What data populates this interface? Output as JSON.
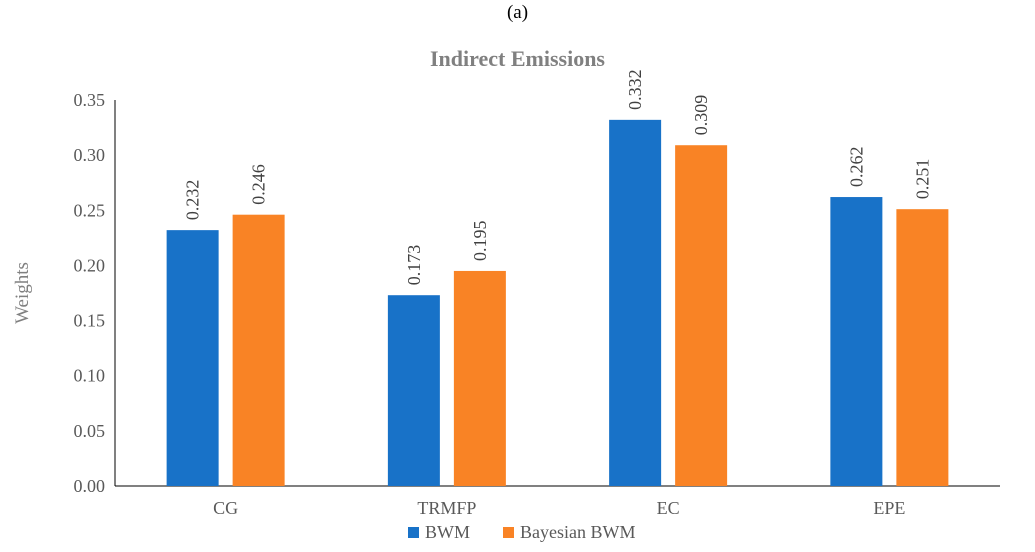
{
  "panel_label": "(a)",
  "chart_data": {
    "type": "bar",
    "title": "Indirect Emissions",
    "xlabel": "",
    "ylabel": "Weights",
    "categories": [
      "CG",
      "TRMFP",
      "EC",
      "EPE"
    ],
    "series": [
      {
        "name": "BWM",
        "values": [
          0.232,
          0.173,
          0.332,
          0.262
        ],
        "labels": [
          "0.232",
          "0.173",
          "0.332",
          "0.262"
        ],
        "color": "#1872c8"
      },
      {
        "name": "Bayesian BWM",
        "values": [
          0.246,
          0.195,
          0.309,
          0.251
        ],
        "labels": [
          "0.246",
          "0.195",
          "0.309",
          "0.251"
        ],
        "color": "#f98325"
      }
    ],
    "ylim": [
      0,
      0.35
    ],
    "yticks": [
      0.0,
      0.05,
      0.1,
      0.15,
      0.2,
      0.25,
      0.3,
      0.35
    ],
    "ytick_labels": [
      "0.00",
      "0.05",
      "0.10",
      "0.15",
      "0.20",
      "0.25",
      "0.30",
      "0.35"
    ],
    "grid": false,
    "legend_position": "bottom",
    "data_label_orientation": "vertical"
  }
}
